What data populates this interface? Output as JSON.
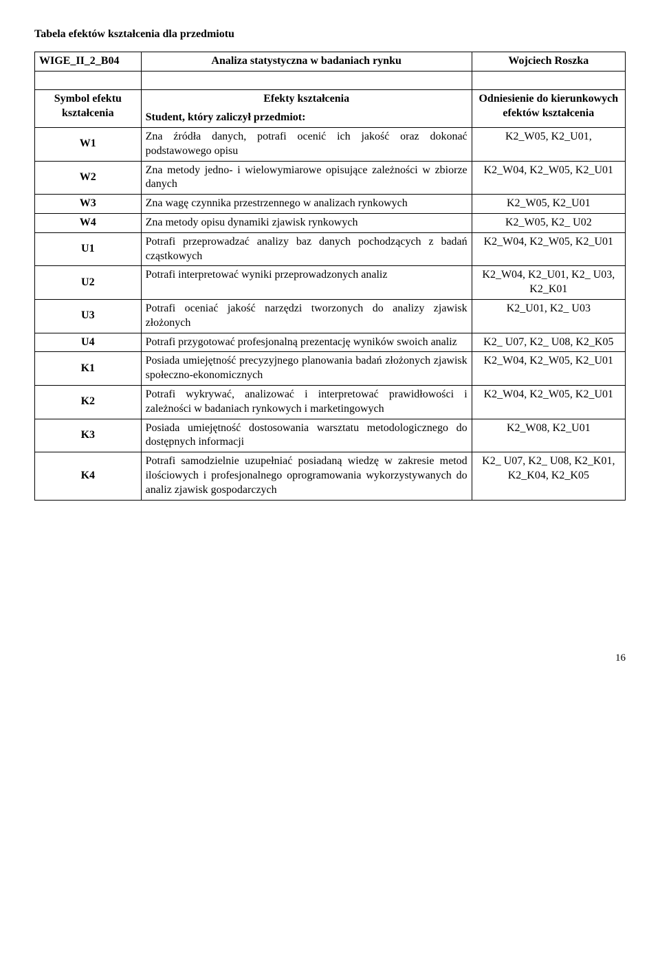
{
  "heading": "Tabela efektów kształcenia dla przedmiotu",
  "course_row": {
    "code": "WIGE_II_2_B04",
    "title": "Analiza statystyczna w badaniach rynku",
    "instructor": "Wojciech Roszka"
  },
  "header": {
    "col1": "Symbol efektu kształcenia",
    "col2_line1": "Efekty kształcenia",
    "col2_line2": "Student, który zaliczył przedmiot:",
    "col3": "Odniesienie do kierunkowych efektów kształcenia"
  },
  "rows": [
    {
      "sym": "W1",
      "desc": "Zna źródła danych, potrafi ocenić ich jakość oraz dokonać podstawowego opisu",
      "ref": "K2_W05, K2_U01,"
    },
    {
      "sym": "W2",
      "desc": "Zna metody jedno- i wielowymiarowe opisujące zależności w zbiorze danych",
      "ref": "K2_W04, K2_W05, K2_U01"
    },
    {
      "sym": "W3",
      "desc": "Zna wagę czynnika przestrzennego w analizach rynkowych",
      "ref": "K2_W05, K2_U01"
    },
    {
      "sym": "W4",
      "desc": "Zna metody opisu dynamiki zjawisk rynkowych",
      "ref": "K2_W05, K2_ U02"
    },
    {
      "sym": "U1",
      "desc": "Potrafi przeprowadzać analizy baz danych pochodzących z badań cząstkowych",
      "ref": "K2_W04, K2_W05, K2_U01"
    },
    {
      "sym": "U2",
      "desc": "Potrafi interpretować wyniki przeprowadzonych analiz",
      "ref": "K2_W04, K2_U01, K2_ U03, K2_K01"
    },
    {
      "sym": "U3",
      "desc": "Potrafi oceniać jakość narzędzi tworzonych do analizy zjawisk złożonych",
      "ref": "K2_U01, K2_ U03"
    },
    {
      "sym": "U4",
      "desc": "Potrafi przygotować profesjonalną prezentację wyników swoich analiz",
      "ref": "K2_ U07, K2_ U08, K2_K05"
    },
    {
      "sym": "K1",
      "desc": "Posiada umiejętność precyzyjnego planowania badań złożonych zjawisk społeczno-ekonomicznych",
      "ref": "K2_W04, K2_W05, K2_U01"
    },
    {
      "sym": "K2",
      "desc": "Potrafi wykrywać, analizować i interpretować prawidłowości i zależności w badaniach rynkowych i marketingowych",
      "ref": "K2_W04, K2_W05, K2_U01"
    },
    {
      "sym": "K3",
      "desc": "Posiada umiejętność dostosowania warsztatu metodologicznego do dostępnych informacji",
      "ref": "K2_W08, K2_U01"
    },
    {
      "sym": "K4",
      "desc": "Potrafi samodzielnie uzupełniać posiadaną wiedzę w zakresie metod ilościowych i profesjonalnego oprogramowania wykorzystywanych do analiz zjawisk gospodarczych",
      "ref": "K2_ U07, K2_ U08, K2_K01, K2_K04, K2_K05"
    }
  ],
  "page_number": "16"
}
